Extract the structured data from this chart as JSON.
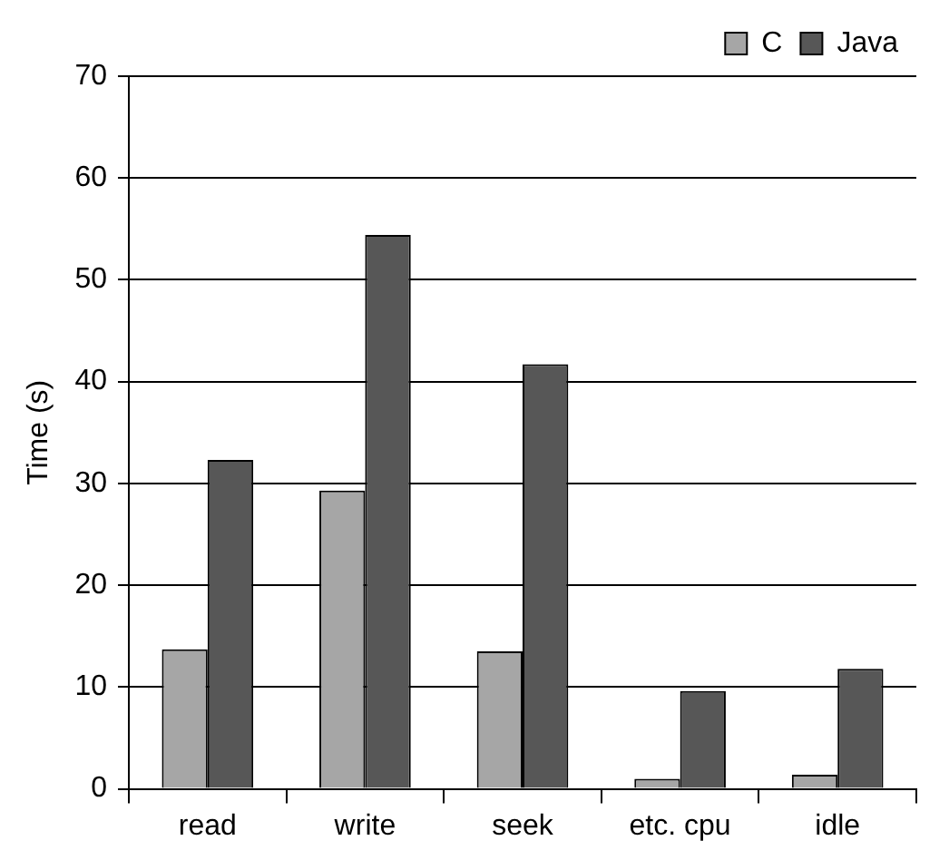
{
  "chart_data": {
    "type": "bar",
    "ylabel": "Time (s)",
    "categories": [
      "read",
      "write",
      "seek",
      "etc. cpu",
      "idle"
    ],
    "series": [
      {
        "name": "C",
        "color": "#a6a6a6",
        "values": [
          13.7,
          29.3,
          13.5,
          1.0,
          1.4
        ]
      },
      {
        "name": "Java",
        "color": "#575757",
        "values": [
          32.3,
          54.4,
          41.7,
          9.6,
          11.8
        ]
      }
    ],
    "ylim": [
      0,
      70
    ],
    "yticks": [
      0,
      10,
      20,
      30,
      40,
      50,
      60,
      70
    ],
    "grid": "y",
    "legend": "top right"
  }
}
